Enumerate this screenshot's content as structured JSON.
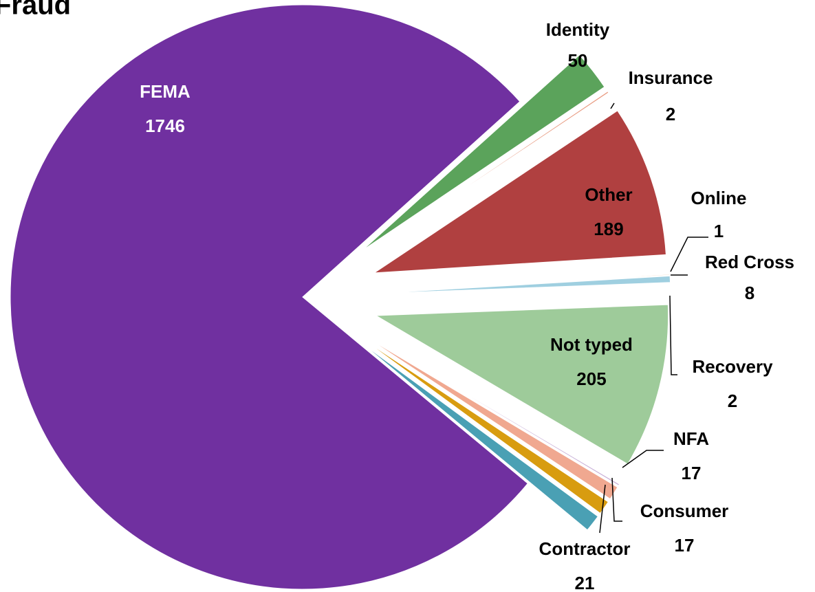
{
  "chart_data": {
    "type": "pie",
    "title": "Fraud",
    "categories": [
      "Identity",
      "Insurance",
      "Other",
      "Online",
      "Red Cross",
      "Not typed",
      "Recovery",
      "NFA",
      "Consumer",
      "Contractor",
      "FEMA"
    ],
    "values": [
      50,
      2,
      189,
      1,
      8,
      205,
      2,
      17,
      17,
      21,
      1746
    ],
    "colors": [
      "#5ba35b",
      "#e89a80",
      "#b04040",
      "#f2c9a8",
      "#9fcfe0",
      "#9ecb9a",
      "#c8b0d8",
      "#f0a890",
      "#d89c10",
      "#4aa0b4",
      "#7030a0"
    ]
  }
}
